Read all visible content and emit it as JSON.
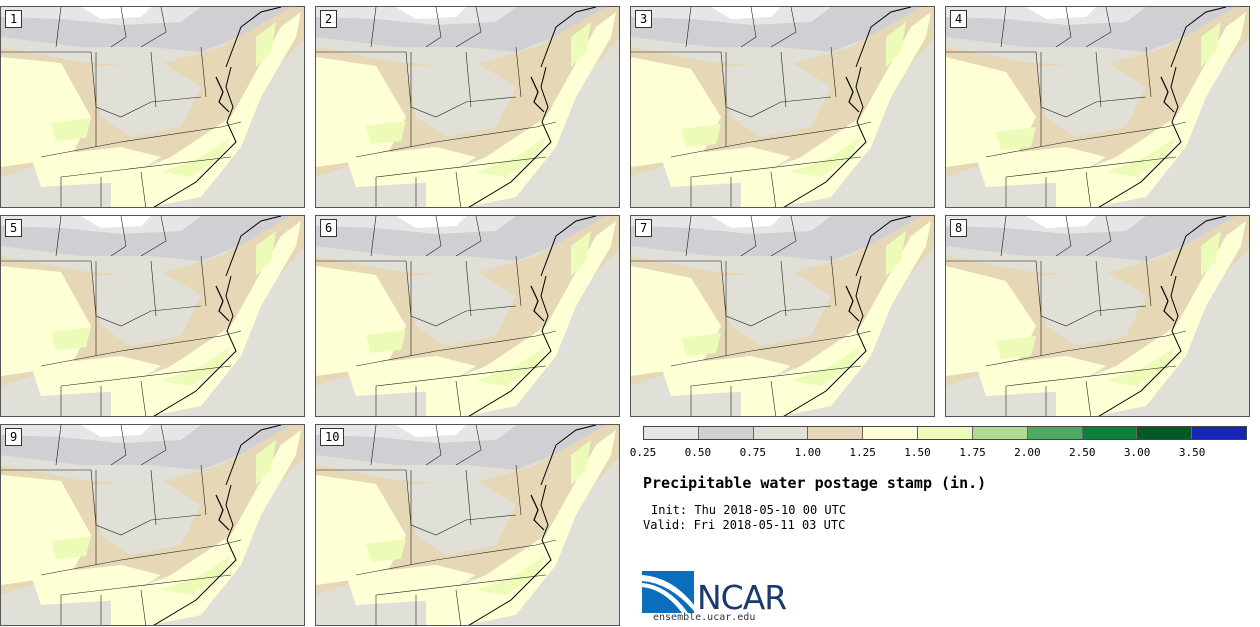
{
  "panels": [
    {
      "label": "1"
    },
    {
      "label": "2"
    },
    {
      "label": "3"
    },
    {
      "label": "4"
    },
    {
      "label": "5"
    },
    {
      "label": "6"
    },
    {
      "label": "7"
    },
    {
      "label": "8"
    },
    {
      "label": "9"
    },
    {
      "label": "10"
    }
  ],
  "colorbar": {
    "ticks": [
      "0.25",
      "0.50",
      "0.75",
      "1.00",
      "1.25",
      "1.50",
      "1.75",
      "2.00",
      "2.50",
      "3.00",
      "3.50"
    ],
    "colors": [
      "#e6e6e6",
      "#cfcfd4",
      "#e0e0d8",
      "#e6d8b6",
      "#ffffd6",
      "#ecfcb8",
      "#b0dc90",
      "#4caa60",
      "#0c8038",
      "#045a24",
      "#1428b4"
    ]
  },
  "map_colors": {
    "background": "#e0e0d8",
    "tan": "#e6d8b6",
    "light_yellow": "#ffffd6",
    "light_green": "#ecfcb8",
    "gray": "#cfcfd4",
    "light_gray": "#e6e6e6",
    "white": "#ffffff"
  },
  "title": "Precipitable water postage stamp (in.)",
  "init": "Init: Thu 2018-05-10 00 UTC",
  "valid": "Valid: Fri 2018-05-11 03 UTC",
  "logo": {
    "text": "NCAR",
    "url": "ensemble.ucar.edu"
  }
}
